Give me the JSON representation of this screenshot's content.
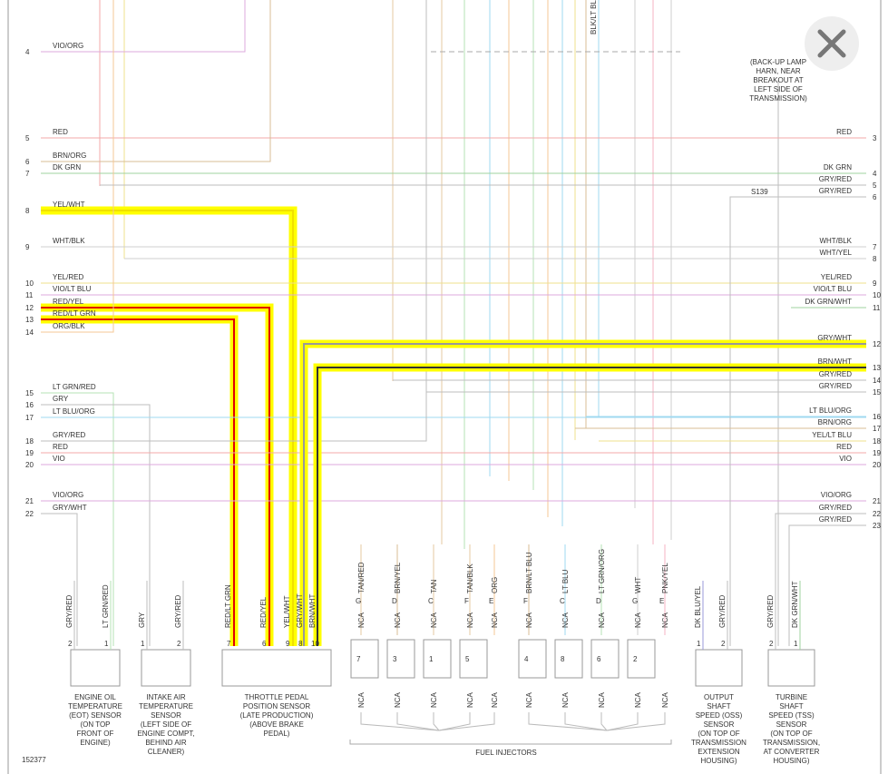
{
  "diagram_id": "152377",
  "top_label": "BLK/LT BLU",
  "note": [
    "(BACK-UP LAMP",
    "HARN, NEAR",
    "BREAKOUT AT",
    "LEFT SIDE OF",
    "TRANSMISSION)"
  ],
  "splice": "S139",
  "left_wires": [
    {
      "pin": "4",
      "label": "VIO/ORG"
    },
    {
      "pin": "5",
      "label": "RED"
    },
    {
      "pin": "6",
      "label": "BRN/ORG"
    },
    {
      "pin": "7",
      "label": "DK GRN"
    },
    {
      "pin": "8",
      "label": "YEL/WHT"
    },
    {
      "pin": "9",
      "label": "WHT/BLK"
    },
    {
      "pin": "10",
      "label": "YEL/RED"
    },
    {
      "pin": "11",
      "label": "VIO/LT BLU"
    },
    {
      "pin": "12",
      "label": "RED/YEL"
    },
    {
      "pin": "13",
      "label": "RED/LT GRN"
    },
    {
      "pin": "14",
      "label": "ORG/BLK"
    },
    {
      "pin": "15",
      "label": "LT GRN/RED"
    },
    {
      "pin": "16",
      "label": "GRY"
    },
    {
      "pin": "17",
      "label": "LT BLU/ORG"
    },
    {
      "pin": "18",
      "label": "GRY/RED"
    },
    {
      "pin": "19",
      "label": "RED"
    },
    {
      "pin": "20",
      "label": "VIO"
    },
    {
      "pin": "21",
      "label": "VIO/ORG"
    },
    {
      "pin": "22",
      "label": "GRY/WHT"
    }
  ],
  "right_wires": [
    {
      "pin": "3",
      "label": "RED"
    },
    {
      "pin": "4",
      "label": "DK GRN"
    },
    {
      "pin": "5",
      "label": "GRY/RED"
    },
    {
      "pin": "6",
      "label": "GRY/RED"
    },
    {
      "pin": "7",
      "label": "WHT/BLK"
    },
    {
      "pin": "8",
      "label": "WHT/YEL"
    },
    {
      "pin": "9",
      "label": "YEL/RED"
    },
    {
      "pin": "10",
      "label": "VIO/LT BLU"
    },
    {
      "pin": "11",
      "label": "DK GRN/WHT"
    },
    {
      "pin": "12",
      "label": "GRY/WHT"
    },
    {
      "pin": "13",
      "label": "BRN/WHT"
    },
    {
      "pin": "14",
      "label": "GRY/RED"
    },
    {
      "pin": "15",
      "label": "GRY/RED"
    },
    {
      "pin": "16",
      "label": "LT BLU/ORG"
    },
    {
      "pin": "17",
      "label": "BRN/ORG"
    },
    {
      "pin": "18",
      "label": "YEL/LT BLU"
    },
    {
      "pin": "19",
      "label": "RED"
    },
    {
      "pin": "20",
      "label": "VIO"
    },
    {
      "pin": "21",
      "label": "VIO/ORG"
    },
    {
      "pin": "22",
      "label": "GRY/RED"
    },
    {
      "pin": "23",
      "label": "GRY/RED"
    }
  ],
  "sensors": [
    {
      "pins": [
        {
          "num": "2",
          "wire": "GRY/RED"
        },
        {
          "num": "1",
          "wire": "LT GRN/RED"
        }
      ],
      "name": [
        "ENGINE OIL",
        "TEMPERATURE",
        "(EOT) SENSOR",
        "(ON TOP",
        "FRONT OF",
        "ENGINE)"
      ]
    },
    {
      "pins": [
        {
          "num": "1",
          "wire": "GRY"
        },
        {
          "num": "2",
          "wire": "GRY/RED"
        }
      ],
      "name": [
        "INTAKE AIR",
        "TEMPERATURE",
        "SENSOR",
        "(LEFT SIDE OF",
        "ENGINE COMPT,",
        "BEHIND AIR",
        "CLEANER)"
      ]
    },
    {
      "pins": [
        {
          "num": "7",
          "wire": "RED/LT GRN"
        },
        {
          "num": "6",
          "wire": "RED/YEL"
        },
        {
          "num": "9",
          "wire": "YEL/WHT"
        },
        {
          "num": "8",
          "wire": "GRY/WHT"
        },
        {
          "num": "10",
          "wire": "BRN/WHT"
        }
      ],
      "name": [
        "THROTTLE PEDAL",
        "POSITION SENSOR",
        "(LATE PRODUCTION)",
        "(ABOVE BRAKE",
        "PEDAL)"
      ]
    },
    {
      "pins": [
        {
          "num": "1",
          "wire": "DK BLU/YEL"
        },
        {
          "num": "2",
          "wire": "GRY/RED"
        }
      ],
      "name": [
        "OUTPUT",
        "SHAFT",
        "SPEED (OSS)",
        "SENSOR",
        "(ON TOP OF",
        "TRANSMISSION",
        "EXTENSION",
        "HOUSING)"
      ]
    },
    {
      "pins": [
        {
          "num": "2",
          "wire": "GRY/RED"
        },
        {
          "num": "1",
          "wire": "DK GRN/WHT"
        }
      ],
      "name": [
        "TURBINE",
        "SHAFT",
        "SPEED (TSS)",
        "SENSOR",
        "(ON TOP OF",
        "TRANSMISSION,",
        "AT CONVERTER",
        "HOUSING)"
      ]
    }
  ],
  "injectors": {
    "title": "FUEL INJECTORS",
    "nca": "NCA",
    "groups": [
      {
        "items": [
          {
            "letter": "G",
            "wire": "TAN/RED",
            "number": "7"
          },
          {
            "letter": "D",
            "wire": "BRN/YEL",
            "number": "3"
          },
          {
            "letter": "C",
            "wire": "TAN",
            "number": "1"
          },
          {
            "letter": "F",
            "wire": "TAN/BLK",
            "number": "5"
          },
          {
            "letter": "E",
            "wire": "ORG"
          }
        ]
      },
      {
        "items": [
          {
            "letter": "F",
            "wire": "BRN/LT BLU",
            "number": "4"
          },
          {
            "letter": "C",
            "wire": "LT BLU",
            "number": "8"
          },
          {
            "letter": "D",
            "wire": "LT GRN/ORG",
            "number": "6"
          },
          {
            "letter": "G",
            "wire": "WHT",
            "number": "2"
          },
          {
            "letter": "E",
            "wire": "PNK/YEL"
          }
        ]
      }
    ]
  }
}
